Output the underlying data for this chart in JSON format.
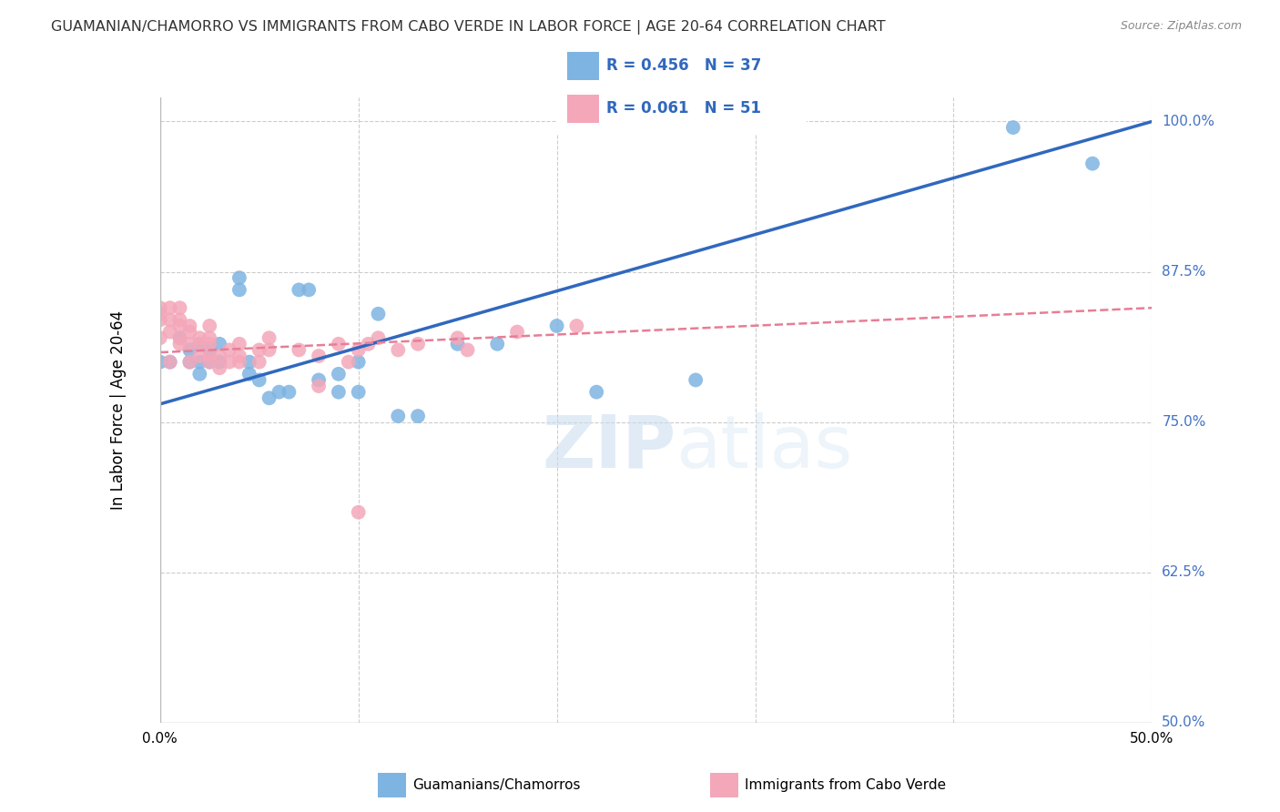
{
  "title": "GUAMANIAN/CHAMORRO VS IMMIGRANTS FROM CABO VERDE IN LABOR FORCE | AGE 20-64 CORRELATION CHART",
  "source": "Source: ZipAtlas.com",
  "ylabel": "In Labor Force | Age 20-64",
  "xlim": [
    0.0,
    0.5
  ],
  "ylim": [
    0.5,
    1.02
  ],
  "yticks": [
    0.5,
    0.625,
    0.75,
    0.875,
    1.0
  ],
  "ytick_labels": [
    "50.0%",
    "62.5%",
    "75.0%",
    "87.5%",
    "100.0%"
  ],
  "xtick_positions": [
    0.0,
    0.1,
    0.2,
    0.3,
    0.4,
    0.5
  ],
  "blue_R": 0.456,
  "blue_N": 37,
  "pink_R": 0.061,
  "pink_N": 51,
  "blue_color": "#7EB4E2",
  "pink_color": "#F4A7B9",
  "blue_line_color": "#3068BE",
  "pink_line_color": "#E87D96",
  "legend_label_blue": "Guamanians/Chamorros",
  "legend_label_pink": "Immigrants from Cabo Verde",
  "watermark_zip": "ZIP",
  "watermark_atlas": "atlas",
  "blue_scatter_x": [
    0.0,
    0.005,
    0.01,
    0.015,
    0.015,
    0.02,
    0.02,
    0.02,
    0.025,
    0.025,
    0.03,
    0.03,
    0.04,
    0.04,
    0.045,
    0.045,
    0.05,
    0.055,
    0.06,
    0.065,
    0.07,
    0.075,
    0.08,
    0.09,
    0.09,
    0.1,
    0.1,
    0.11,
    0.12,
    0.13,
    0.15,
    0.17,
    0.2,
    0.22,
    0.27,
    0.43,
    0.47
  ],
  "blue_scatter_y": [
    0.8,
    0.8,
    0.82,
    0.8,
    0.81,
    0.79,
    0.8,
    0.815,
    0.8,
    0.81,
    0.8,
    0.815,
    0.86,
    0.87,
    0.79,
    0.8,
    0.785,
    0.77,
    0.775,
    0.775,
    0.86,
    0.86,
    0.785,
    0.775,
    0.79,
    0.8,
    0.775,
    0.84,
    0.755,
    0.755,
    0.815,
    0.815,
    0.83,
    0.775,
    0.785,
    0.995,
    0.965
  ],
  "pink_scatter_x": [
    0.0,
    0.0,
    0.0,
    0.0,
    0.005,
    0.005,
    0.005,
    0.005,
    0.01,
    0.01,
    0.01,
    0.01,
    0.01,
    0.015,
    0.015,
    0.015,
    0.015,
    0.02,
    0.02,
    0.02,
    0.025,
    0.025,
    0.025,
    0.025,
    0.025,
    0.03,
    0.03,
    0.035,
    0.035,
    0.04,
    0.04,
    0.04,
    0.05,
    0.05,
    0.055,
    0.055,
    0.07,
    0.08,
    0.08,
    0.09,
    0.095,
    0.1,
    0.1,
    0.105,
    0.11,
    0.12,
    0.13,
    0.15,
    0.155,
    0.18,
    0.21
  ],
  "pink_scatter_y": [
    0.82,
    0.835,
    0.84,
    0.845,
    0.8,
    0.825,
    0.835,
    0.845,
    0.815,
    0.82,
    0.83,
    0.835,
    0.845,
    0.8,
    0.815,
    0.825,
    0.83,
    0.805,
    0.815,
    0.82,
    0.8,
    0.805,
    0.815,
    0.82,
    0.83,
    0.795,
    0.805,
    0.8,
    0.81,
    0.8,
    0.805,
    0.815,
    0.8,
    0.81,
    0.81,
    0.82,
    0.81,
    0.78,
    0.805,
    0.815,
    0.8,
    0.81,
    0.675,
    0.815,
    0.82,
    0.81,
    0.815,
    0.82,
    0.81,
    0.825,
    0.83
  ],
  "blue_line_x": [
    0.0,
    0.5
  ],
  "blue_line_y": [
    0.765,
    1.0
  ],
  "pink_line_x": [
    0.0,
    0.5
  ],
  "pink_line_y": [
    0.808,
    0.845
  ],
  "grid_color": "#CCCCCC",
  "background_color": "#FFFFFF",
  "right_tick_color": "#4472C4"
}
